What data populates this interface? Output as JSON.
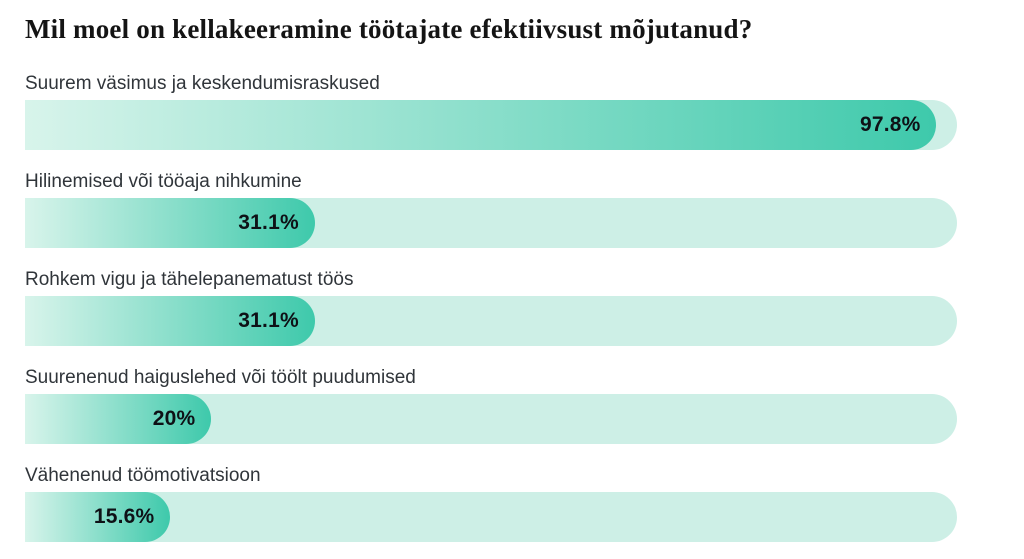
{
  "page": {
    "background": "#ffffff"
  },
  "chart_data": {
    "type": "bar",
    "orientation": "horizontal",
    "title": "Mil moel on kellakeeramine töötajate efektiivsust mõjutanud?",
    "categories": [
      "Suurem väsimus ja keskendumisraskused",
      "Hilinemised või tööaja nihkumine",
      "Rohkem vigu ja tähelepanematust töös",
      "Suurenenud haiguslehed või töölt puudumised",
      "Vähenenud töömotivatsioon"
    ],
    "values": [
      97.8,
      31.1,
      31.1,
      20,
      15.6
    ],
    "value_labels": [
      "97.8%",
      "31.1%",
      "31.1%",
      "20%",
      "15.6%"
    ],
    "xlim": [
      0,
      100
    ],
    "grid": false,
    "legend": false,
    "value_label_position": "inside-end"
  },
  "colors": {
    "track": "#cdefe6",
    "fill_gradient_start": "#d8f4eb",
    "fill_gradient_end": "#3ec9ab",
    "title_text": "#141414",
    "category_text": "#30353a",
    "value_text": "#0e1116",
    "page_background": "#ffffff"
  }
}
